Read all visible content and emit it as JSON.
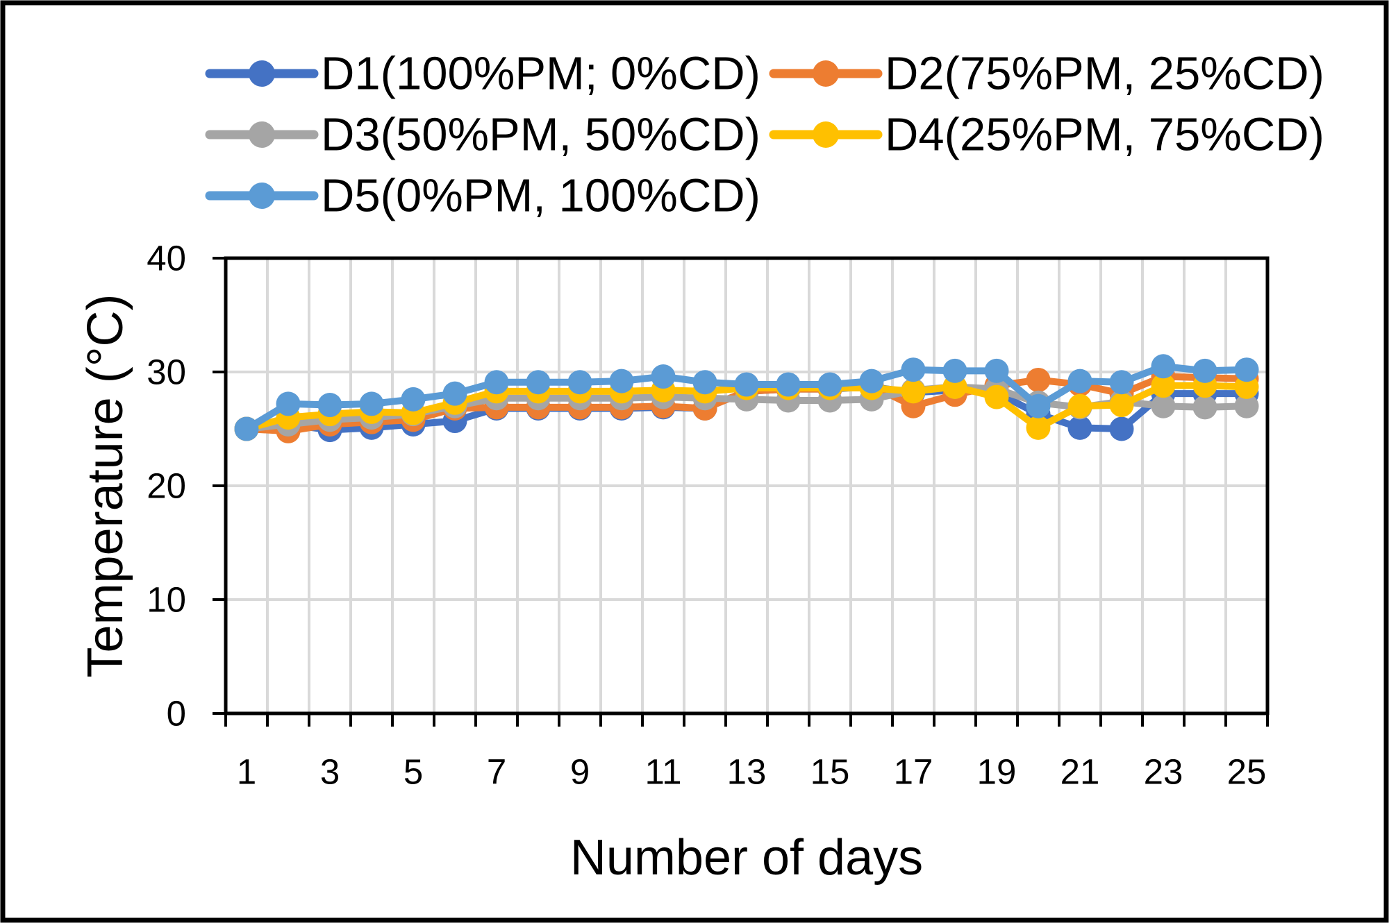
{
  "chart_data": {
    "type": "line",
    "title": "",
    "xlabel": "Number of days",
    "ylabel": "Temperature (°C)",
    "x": [
      1,
      2,
      3,
      4,
      5,
      6,
      7,
      8,
      9,
      10,
      11,
      12,
      13,
      14,
      15,
      16,
      17,
      18,
      19,
      20,
      21,
      22,
      23,
      24,
      25
    ],
    "x_tick_labels": [
      "1",
      "3",
      "5",
      "7",
      "9",
      "11",
      "13",
      "15",
      "17",
      "19",
      "21",
      "23",
      "25"
    ],
    "ylim": [
      0,
      40
    ],
    "y_ticks": [
      0,
      10,
      20,
      30,
      40
    ],
    "y_tick_labels": [
      "40",
      "30",
      "20",
      "10",
      "0"
    ],
    "y_gridlines": [
      10,
      20,
      30
    ],
    "grid": true,
    "legend_position": "top-left",
    "background": "#FFFFFF",
    "grid_color": "#D9D9D9",
    "axis_color": "#000000",
    "frame_color": "#000000",
    "series": [
      {
        "name": "D1(100%PM; 0%CD)",
        "color": "#4472C4",
        "values": [
          25,
          25.4,
          24.9,
          25.1,
          25.4,
          25.7,
          26.8,
          26.8,
          26.8,
          26.8,
          26.9,
          26.8,
          28.3,
          28.5,
          28.5,
          28.7,
          28.2,
          28.4,
          28.2,
          26.3,
          25.1,
          25.0,
          28.1,
          28.1,
          28.1
        ]
      },
      {
        "name": "D2(75%PM, 25%CD)",
        "color": "#ED7D31",
        "values": [
          25,
          24.8,
          25.4,
          25.6,
          25.8,
          26.8,
          26.9,
          26.9,
          26.9,
          26.9,
          27.0,
          26.8,
          28.3,
          28.5,
          28.5,
          28.8,
          27.0,
          28.0,
          28.8,
          29.3,
          28.9,
          28.1,
          29.6,
          29.5,
          29.4
        ]
      },
      {
        "name": "D3(50%PM, 50%CD)",
        "color": "#A5A5A5",
        "values": [
          25,
          25.4,
          25.8,
          26.0,
          26.3,
          27.0,
          27.7,
          27.7,
          27.7,
          27.7,
          27.8,
          27.7,
          27.6,
          27.5,
          27.5,
          27.6,
          28.4,
          28.7,
          28.5,
          27.3,
          26.9,
          27.4,
          27.0,
          26.9,
          27.0
        ]
      },
      {
        "name": "D4(25%PM, 75%CD)",
        "color": "#FFC000",
        "values": [
          25,
          26.0,
          26.3,
          26.5,
          26.4,
          27.3,
          28.3,
          28.3,
          28.3,
          28.3,
          28.4,
          28.3,
          28.6,
          28.6,
          28.6,
          28.6,
          28.3,
          28.7,
          27.8,
          25.1,
          27.0,
          27.1,
          28.8,
          28.8,
          28.7
        ]
      },
      {
        "name": "D5(0%PM, 100%CD)",
        "color": "#5B9BD5",
        "values": [
          25,
          27.2,
          27.1,
          27.2,
          27.6,
          28.1,
          29.1,
          29.1,
          29.1,
          29.2,
          29.6,
          29.1,
          28.9,
          28.9,
          28.9,
          29.2,
          30.2,
          30.1,
          30.1,
          27.0,
          29.2,
          29.1,
          30.5,
          30.1,
          30.2
        ]
      }
    ]
  }
}
